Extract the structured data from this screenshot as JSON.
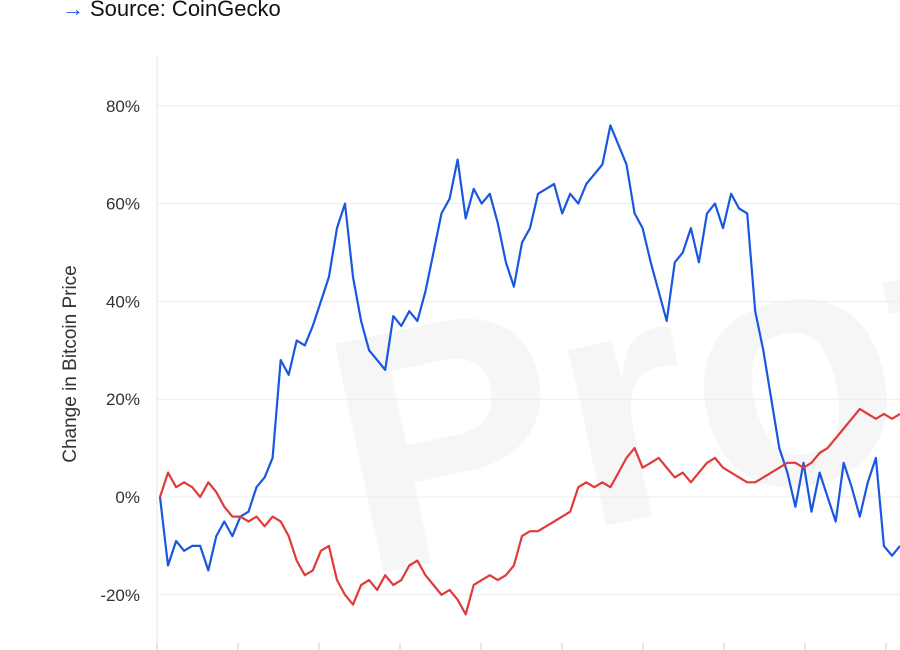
{
  "source": {
    "arrow": "→",
    "text": "Source: CoinGecko"
  },
  "watermark": "Proto",
  "chart_data": {
    "type": "line",
    "title": "",
    "xlabel": "",
    "ylabel": "Change in Bitcoin Price",
    "ylim": [
      -30,
      90
    ],
    "y_ticks": [
      80,
      60,
      40,
      20,
      0,
      -20
    ],
    "y_tick_labels": [
      "80%",
      "60%",
      "40%",
      "20%",
      "0%",
      "-20%"
    ],
    "x_range": [
      0,
      92
    ],
    "grid": true,
    "legend": "none",
    "series": [
      {
        "color": "#1a57e0",
        "points": [
          [
            0,
            0
          ],
          [
            1,
            -14
          ],
          [
            2,
            -9
          ],
          [
            3,
            -11
          ],
          [
            4,
            -10
          ],
          [
            5,
            -10
          ],
          [
            6,
            -15
          ],
          [
            7,
            -8
          ],
          [
            8,
            -5
          ],
          [
            9,
            -8
          ],
          [
            10,
            -4
          ],
          [
            11,
            -3
          ],
          [
            12,
            2
          ],
          [
            13,
            4
          ],
          [
            14,
            8
          ],
          [
            15,
            28
          ],
          [
            16,
            25
          ],
          [
            17,
            32
          ],
          [
            18,
            31
          ],
          [
            19,
            35
          ],
          [
            20,
            40
          ],
          [
            21,
            45
          ],
          [
            22,
            55
          ],
          [
            23,
            60
          ],
          [
            24,
            45
          ],
          [
            25,
            36
          ],
          [
            26,
            30
          ],
          [
            27,
            28
          ],
          [
            28,
            26
          ],
          [
            29,
            37
          ],
          [
            30,
            35
          ],
          [
            31,
            38
          ],
          [
            32,
            36
          ],
          [
            33,
            42
          ],
          [
            34,
            50
          ],
          [
            35,
            58
          ],
          [
            36,
            61
          ],
          [
            37,
            69
          ],
          [
            38,
            57
          ],
          [
            39,
            63
          ],
          [
            40,
            60
          ],
          [
            41,
            62
          ],
          [
            42,
            56
          ],
          [
            43,
            48
          ],
          [
            44,
            43
          ],
          [
            45,
            52
          ],
          [
            46,
            55
          ],
          [
            47,
            62
          ],
          [
            48,
            63
          ],
          [
            49,
            64
          ],
          [
            50,
            58
          ],
          [
            51,
            62
          ],
          [
            52,
            60
          ],
          [
            53,
            64
          ],
          [
            54,
            66
          ],
          [
            55,
            68
          ],
          [
            56,
            76
          ],
          [
            57,
            72
          ],
          [
            58,
            68
          ],
          [
            59,
            58
          ],
          [
            60,
            55
          ],
          [
            61,
            48
          ],
          [
            62,
            42
          ],
          [
            63,
            36
          ],
          [
            64,
            48
          ],
          [
            65,
            50
          ],
          [
            66,
            55
          ],
          [
            67,
            48
          ],
          [
            68,
            58
          ],
          [
            69,
            60
          ],
          [
            70,
            55
          ],
          [
            71,
            62
          ],
          [
            72,
            59
          ],
          [
            73,
            58
          ],
          [
            74,
            38
          ],
          [
            75,
            30
          ],
          [
            76,
            20
          ],
          [
            77,
            10
          ],
          [
            78,
            5
          ],
          [
            79,
            -2
          ],
          [
            80,
            7
          ],
          [
            81,
            -3
          ],
          [
            82,
            5
          ],
          [
            83,
            0
          ],
          [
            84,
            -5
          ],
          [
            85,
            7
          ],
          [
            86,
            2
          ],
          [
            87,
            -4
          ],
          [
            88,
            3
          ],
          [
            89,
            8
          ],
          [
            90,
            -10
          ],
          [
            91,
            -12
          ],
          [
            92,
            -10
          ]
        ]
      },
      {
        "color": "#e03a3a",
        "points": [
          [
            0,
            0
          ],
          [
            1,
            5
          ],
          [
            2,
            2
          ],
          [
            3,
            3
          ],
          [
            4,
            2
          ],
          [
            5,
            0
          ],
          [
            6,
            3
          ],
          [
            7,
            1
          ],
          [
            8,
            -2
          ],
          [
            9,
            -4
          ],
          [
            10,
            -4
          ],
          [
            11,
            -5
          ],
          [
            12,
            -4
          ],
          [
            13,
            -6
          ],
          [
            14,
            -4
          ],
          [
            15,
            -5
          ],
          [
            16,
            -8
          ],
          [
            17,
            -13
          ],
          [
            18,
            -16
          ],
          [
            19,
            -15
          ],
          [
            20,
            -11
          ],
          [
            21,
            -10
          ],
          [
            22,
            -17
          ],
          [
            23,
            -20
          ],
          [
            24,
            -22
          ],
          [
            25,
            -18
          ],
          [
            26,
            -17
          ],
          [
            27,
            -19
          ],
          [
            28,
            -16
          ],
          [
            29,
            -18
          ],
          [
            30,
            -17
          ],
          [
            31,
            -14
          ],
          [
            32,
            -13
          ],
          [
            33,
            -16
          ],
          [
            34,
            -18
          ],
          [
            35,
            -20
          ],
          [
            36,
            -19
          ],
          [
            37,
            -21
          ],
          [
            38,
            -24
          ],
          [
            39,
            -18
          ],
          [
            40,
            -17
          ],
          [
            41,
            -16
          ],
          [
            42,
            -17
          ],
          [
            43,
            -16
          ],
          [
            44,
            -14
          ],
          [
            45,
            -8
          ],
          [
            46,
            -7
          ],
          [
            47,
            -7
          ],
          [
            48,
            -6
          ],
          [
            49,
            -5
          ],
          [
            50,
            -4
          ],
          [
            51,
            -3
          ],
          [
            52,
            2
          ],
          [
            53,
            3
          ],
          [
            54,
            2
          ],
          [
            55,
            3
          ],
          [
            56,
            2
          ],
          [
            57,
            5
          ],
          [
            58,
            8
          ],
          [
            59,
            10
          ],
          [
            60,
            6
          ],
          [
            61,
            7
          ],
          [
            62,
            8
          ],
          [
            63,
            6
          ],
          [
            64,
            4
          ],
          [
            65,
            5
          ],
          [
            66,
            3
          ],
          [
            67,
            5
          ],
          [
            68,
            7
          ],
          [
            69,
            8
          ],
          [
            70,
            6
          ],
          [
            71,
            5
          ],
          [
            72,
            4
          ],
          [
            73,
            3
          ],
          [
            74,
            3
          ],
          [
            75,
            4
          ],
          [
            76,
            5
          ],
          [
            77,
            6
          ],
          [
            78,
            7
          ],
          [
            79,
            7
          ],
          [
            80,
            6
          ],
          [
            81,
            7
          ],
          [
            82,
            9
          ],
          [
            83,
            10
          ],
          [
            84,
            12
          ],
          [
            85,
            14
          ],
          [
            86,
            16
          ],
          [
            87,
            18
          ],
          [
            88,
            17
          ],
          [
            89,
            16
          ],
          [
            90,
            17
          ],
          [
            91,
            16
          ],
          [
            92,
            17
          ]
        ]
      }
    ]
  }
}
